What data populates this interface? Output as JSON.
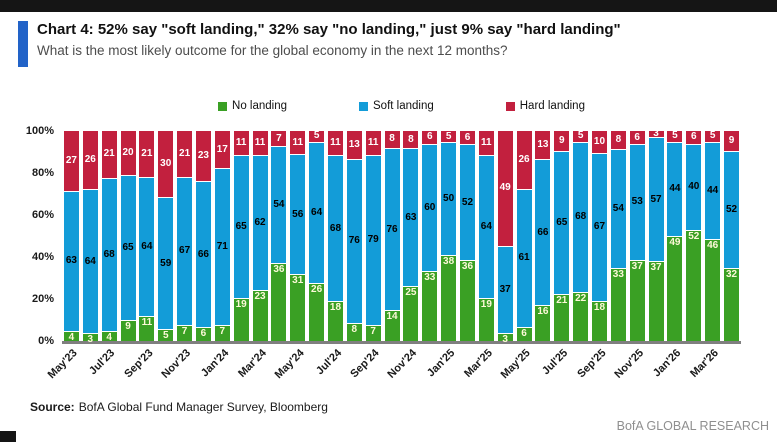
{
  "header": {
    "title": "Chart 4: 52% say \"soft landing,\" 32% say \"no landing,\" just 9% say \"hard landing\"",
    "subtitle": "What is the most likely outcome for the global economy in the next 12 months?"
  },
  "legend": [
    {
      "label": "No landing",
      "color": "#3aa024"
    },
    {
      "label": "Soft landing",
      "color": "#139cd8"
    },
    {
      "label": "Hard landing",
      "color": "#c2203e"
    }
  ],
  "colors": {
    "accent_bar": "#2263c8",
    "top_bar": "#151515",
    "baseline": "#7f7f7f",
    "brand_text": "#8f8f8f"
  },
  "chart_data": {
    "type": "bar",
    "stacked": true,
    "normalized_to_100_percent": true,
    "title": "Chart 4: 52% say \"soft landing,\" 32% say \"no landing,\" just 9% say \"hard landing\"",
    "xlabel": "",
    "ylabel": "",
    "ylim": [
      0,
      100
    ],
    "grid": false,
    "legend_position": "top-center",
    "y_ticks": [
      "100%",
      "80%",
      "60%",
      "40%",
      "20%",
      "0%"
    ],
    "categories": [
      "May'23",
      "Jun'23",
      "Jul'23",
      "Aug'23",
      "Sep'23",
      "Oct'23",
      "Nov'23",
      "Dec'23",
      "Jan'24",
      "Feb'24",
      "Mar'24",
      "Apr'24",
      "May'24",
      "Jun'24",
      "Jul'24",
      "Aug'24",
      "Sep'24",
      "Oct'24",
      "Nov'24",
      "Dec'24",
      "Jan'25",
      "Feb'25",
      "Mar'25",
      "Apr'25",
      "May'25",
      "Jun'25",
      "Jul'25",
      "Aug'25",
      "Sep'25",
      "Oct'25",
      "Nov'25",
      "Dec'25",
      "Jan'26",
      "Feb'26",
      "Mar'26",
      "Apr'26"
    ],
    "x_tick_labels_shown": [
      "May'23",
      "Jul'23",
      "Sep'23",
      "Nov'23",
      "Jan'24",
      "Mar'24",
      "May'24",
      "Jul'24",
      "Sep'24",
      "Nov'24",
      "Jan'25",
      "Mar'25",
      "May'25",
      "Jul'25",
      "Sep'25",
      "Nov'25",
      "Jan'26",
      "Mar'26"
    ],
    "series": [
      {
        "name": "No landing",
        "color": "#3aa024",
        "values": [
          4,
          3,
          4,
          9,
          11,
          5,
          7,
          6,
          7,
          19,
          23,
          36,
          31,
          26,
          18,
          8,
          7,
          14,
          25,
          33,
          38,
          36,
          19,
          3,
          6,
          16,
          21,
          22,
          18,
          33,
          37,
          37,
          49,
          52,
          46,
          32
        ]
      },
      {
        "name": "Soft landing",
        "color": "#139cd8",
        "values": [
          63,
          64,
          68,
          65,
          64,
          59,
          67,
          66,
          71,
          65,
          62,
          54,
          56,
          64,
          68,
          76,
          79,
          76,
          63,
          60,
          50,
          52,
          64,
          37,
          61,
          66,
          65,
          68,
          67,
          54,
          53,
          57,
          44,
          40,
          44,
          52
        ]
      },
      {
        "name": "Hard landing",
        "color": "#c2203e",
        "values": [
          27,
          26,
          21,
          20,
          21,
          30,
          21,
          23,
          17,
          11,
          11,
          7,
          11,
          5,
          11,
          13,
          11,
          8,
          8,
          6,
          5,
          6,
          11,
          49,
          26,
          13,
          9,
          5,
          10,
          8,
          6,
          3,
          5,
          6,
          5,
          9
        ]
      }
    ]
  },
  "footer": {
    "source_label": "Source:",
    "source_text": "BofA Global Fund Manager Survey, Bloomberg",
    "brand": "BofA GLOBAL RESEARCH"
  }
}
